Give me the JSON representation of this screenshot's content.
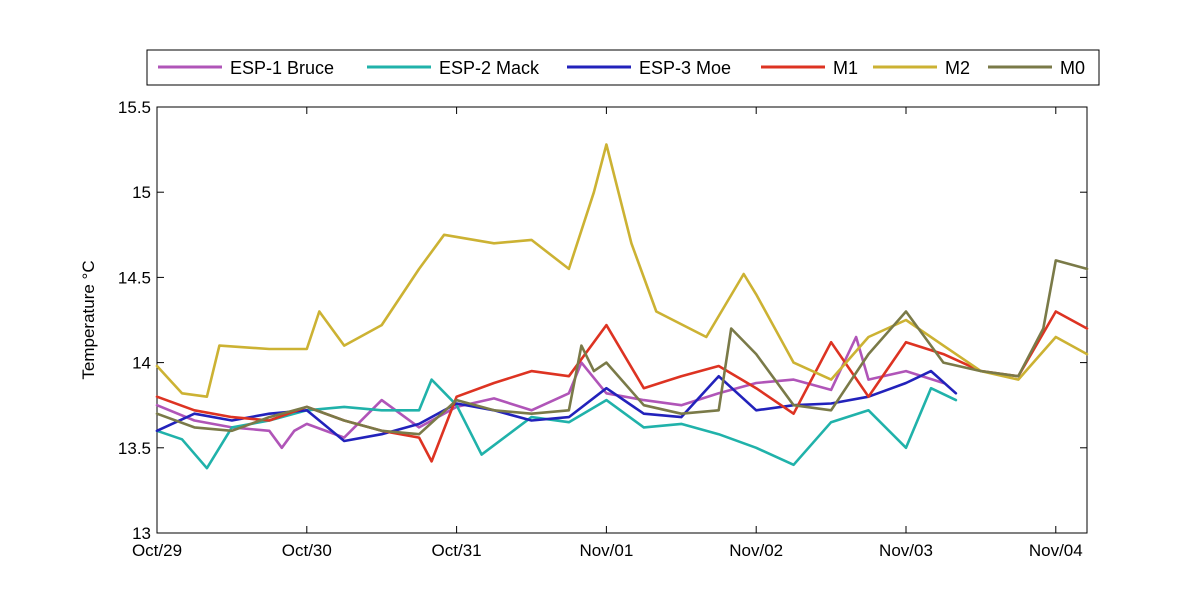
{
  "chart_data": {
    "type": "line",
    "ylabel": "Temperature °C",
    "xlabel": "",
    "ylim": [
      13,
      15.5
    ],
    "yticks": [
      13,
      13.5,
      14,
      14.5,
      15,
      15.5
    ],
    "ytick_labels": [
      "13",
      "13.5",
      "14",
      "14.5",
      "15",
      "15.5"
    ],
    "xlim": [
      "Oct/29 00:00",
      "Nov/04 05:00"
    ],
    "xticks": [
      "Oct/29",
      "Oct/30",
      "Oct/31",
      "Nov/01",
      "Nov/02",
      "Nov/03",
      "Nov/04"
    ],
    "grid": false,
    "legend": "top, horizontal",
    "series": [
      {
        "name": "ESP-1 Bruce",
        "color": "#b055b8",
        "x": [
          "Oct/29 00:00",
          "Oct/29 06:00",
          "Oct/29 12:00",
          "Oct/29 18:00",
          "Oct/29 20:00",
          "Oct/29 22:00",
          "Oct/30 00:00",
          "Oct/30 06:00",
          "Oct/30 12:00",
          "Oct/30 18:00",
          "Oct/31 00:00",
          "Oct/31 06:00",
          "Oct/31 12:00",
          "Oct/31 18:00",
          "Oct/31 20:00",
          "Nov/01 00:00",
          "Nov/01 06:00",
          "Nov/01 12:00",
          "Nov/01 18:00",
          "Nov/02 00:00",
          "Nov/02 06:00",
          "Nov/02 12:00",
          "Nov/02 16:00",
          "Nov/02 18:00",
          "Nov/03 00:00",
          "Nov/03 06:00"
        ],
        "y": [
          13.75,
          13.66,
          13.62,
          13.6,
          13.5,
          13.6,
          13.64,
          13.56,
          13.78,
          13.62,
          13.74,
          13.79,
          13.72,
          13.82,
          14.0,
          13.82,
          13.78,
          13.75,
          13.82,
          13.88,
          13.9,
          13.84,
          14.15,
          13.9,
          13.95,
          13.88
        ]
      },
      {
        "name": "ESP-2 Mack",
        "color": "#20b2aa",
        "x": [
          "Oct/29 00:00",
          "Oct/29 04:00",
          "Oct/29 08:00",
          "Oct/29 12:00",
          "Oct/29 18:00",
          "Oct/30 00:00",
          "Oct/30 06:00",
          "Oct/30 12:00",
          "Oct/30 18:00",
          "Oct/30 20:00",
          "Oct/31 00:00",
          "Oct/31 04:00",
          "Oct/31 12:00",
          "Oct/31 18:00",
          "Nov/01 00:00",
          "Nov/01 06:00",
          "Nov/01 12:00",
          "Nov/01 18:00",
          "Nov/02 00:00",
          "Nov/02 06:00",
          "Nov/02 12:00",
          "Nov/02 18:00",
          "Nov/03 00:00",
          "Nov/03 04:00",
          "Nov/03 08:00"
        ],
        "y": [
          13.6,
          13.55,
          13.38,
          13.62,
          13.66,
          13.72,
          13.74,
          13.72,
          13.72,
          13.9,
          13.75,
          13.46,
          13.68,
          13.65,
          13.78,
          13.62,
          13.64,
          13.58,
          13.5,
          13.4,
          13.65,
          13.72,
          13.5,
          13.85,
          13.78
        ]
      },
      {
        "name": "ESP-3 Moe",
        "color": "#2222bb",
        "x": [
          "Oct/29 00:00",
          "Oct/29 06:00",
          "Oct/29 12:00",
          "Oct/29 18:00",
          "Oct/30 00:00",
          "Oct/30 06:00",
          "Oct/30 12:00",
          "Oct/30 18:00",
          "Oct/31 00:00",
          "Oct/31 06:00",
          "Oct/31 12:00",
          "Oct/31 18:00",
          "Nov/01 00:00",
          "Nov/01 06:00",
          "Nov/01 12:00",
          "Nov/01 18:00",
          "Nov/02 00:00",
          "Nov/02 06:00",
          "Nov/02 12:00",
          "Nov/02 18:00",
          "Nov/03 00:00",
          "Nov/03 04:00",
          "Nov/03 08:00"
        ],
        "y": [
          13.6,
          13.7,
          13.66,
          13.7,
          13.72,
          13.54,
          13.58,
          13.64,
          13.76,
          13.72,
          13.66,
          13.68,
          13.85,
          13.7,
          13.68,
          13.92,
          13.72,
          13.75,
          13.76,
          13.8,
          13.88,
          13.95,
          13.82
        ]
      },
      {
        "name": "M1",
        "color": "#dd3322",
        "x": [
          "Oct/29 00:00",
          "Oct/29 06:00",
          "Oct/29 12:00",
          "Oct/29 18:00",
          "Oct/30 00:00",
          "Oct/30 06:00",
          "Oct/30 12:00",
          "Oct/30 18:00",
          "Oct/30 20:00",
          "Oct/31 00:00",
          "Oct/31 06:00",
          "Oct/31 12:00",
          "Oct/31 18:00",
          "Nov/01 00:00",
          "Nov/01 06:00",
          "Nov/01 12:00",
          "Nov/01 18:00",
          "Nov/02 00:00",
          "Nov/02 06:00",
          "Nov/02 12:00",
          "Nov/02 18:00",
          "Nov/03 00:00",
          "Nov/03 06:00",
          "Nov/03 12:00",
          "Nov/03 18:00",
          "Nov/04 00:00",
          "Nov/04 05:00"
        ],
        "y": [
          13.8,
          13.72,
          13.68,
          13.66,
          13.74,
          13.66,
          13.6,
          13.56,
          13.42,
          13.8,
          13.88,
          13.95,
          13.92,
          14.22,
          13.85,
          13.92,
          13.98,
          13.85,
          13.7,
          14.12,
          13.8,
          14.12,
          14.05,
          13.95,
          13.92,
          14.3,
          14.2
        ]
      },
      {
        "name": "M2",
        "color": "#ccb233",
        "x": [
          "Oct/29 00:00",
          "Oct/29 04:00",
          "Oct/29 08:00",
          "Oct/29 10:00",
          "Oct/29 18:00",
          "Oct/30 00:00",
          "Oct/30 02:00",
          "Oct/30 06:00",
          "Oct/30 12:00",
          "Oct/30 18:00",
          "Oct/30 22:00",
          "Oct/31 06:00",
          "Oct/31 12:00",
          "Oct/31 18:00",
          "Oct/31 22:00",
          "Nov/01 00:00",
          "Nov/01 04:00",
          "Nov/01 08:00",
          "Nov/01 16:00",
          "Nov/01 22:00",
          "Nov/02 00:00",
          "Nov/02 06:00",
          "Nov/02 12:00",
          "Nov/02 18:00",
          "Nov/03 00:00",
          "Nov/03 06:00",
          "Nov/03 12:00",
          "Nov/03 18:00",
          "Nov/04 00:00",
          "Nov/04 05:00"
        ],
        "y": [
          13.98,
          13.82,
          13.8,
          14.1,
          14.08,
          14.08,
          14.3,
          14.1,
          14.22,
          14.55,
          14.75,
          14.7,
          14.72,
          14.55,
          15.0,
          15.28,
          14.7,
          14.3,
          14.15,
          14.52,
          14.4,
          14.0,
          13.9,
          14.15,
          14.25,
          14.1,
          13.95,
          13.9,
          14.15,
          14.05
        ]
      },
      {
        "name": "M0",
        "color": "#7a7a48",
        "x": [
          "Oct/29 00:00",
          "Oct/29 06:00",
          "Oct/29 12:00",
          "Oct/29 18:00",
          "Oct/30 00:00",
          "Oct/30 06:00",
          "Oct/30 12:00",
          "Oct/30 18:00",
          "Oct/31 00:00",
          "Oct/31 06:00",
          "Oct/31 12:00",
          "Oct/31 18:00",
          "Oct/31 20:00",
          "Oct/31 22:00",
          "Nov/01 00:00",
          "Nov/01 06:00",
          "Nov/01 12:00",
          "Nov/01 18:00",
          "Nov/01 20:00",
          "Nov/02 00:00",
          "Nov/02 06:00",
          "Nov/02 12:00",
          "Nov/02 18:00",
          "Nov/03 00:00",
          "Nov/03 06:00",
          "Nov/03 12:00",
          "Nov/03 18:00",
          "Nov/03 22:00",
          "Nov/04 00:00",
          "Nov/04 05:00"
        ],
        "y": [
          13.7,
          13.62,
          13.6,
          13.68,
          13.74,
          13.66,
          13.6,
          13.58,
          13.78,
          13.72,
          13.7,
          13.72,
          14.1,
          13.95,
          14.0,
          13.75,
          13.7,
          13.72,
          14.2,
          14.05,
          13.75,
          13.72,
          14.05,
          14.3,
          14.0,
          13.95,
          13.92,
          14.2,
          14.6,
          14.55
        ]
      }
    ]
  }
}
